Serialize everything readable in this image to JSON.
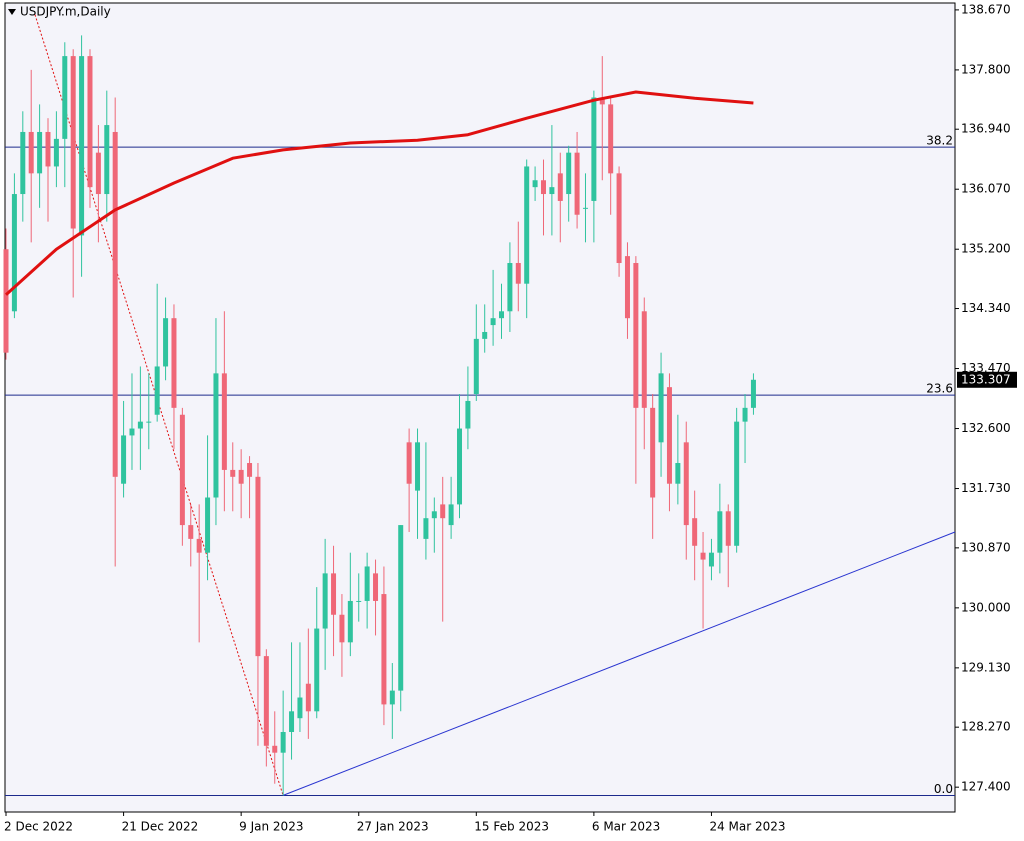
{
  "chart_data": {
    "type": "candlestick",
    "title": "USDJPY.m,Daily",
    "categories": [
      "2 Dec 2022",
      null,
      null,
      null,
      null,
      null,
      null,
      null,
      null,
      null,
      null,
      null,
      null,
      null,
      "21 Dec 2022",
      null,
      null,
      null,
      null,
      null,
      null,
      null,
      null,
      null,
      null,
      null,
      null,
      null,
      "9 Jan 2023",
      null,
      null,
      null,
      null,
      null,
      null,
      null,
      null,
      null,
      null,
      null,
      null,
      null,
      "27 Jan 2023",
      null,
      null,
      null,
      null,
      null,
      null,
      null,
      null,
      null,
      null,
      null,
      null,
      null,
      "15 Feb 2023",
      null,
      null,
      null,
      null,
      null,
      null,
      null,
      null,
      null,
      null,
      null,
      null,
      null,
      "6 Mar 2023",
      null,
      null,
      null,
      null,
      null,
      null,
      null,
      null,
      null,
      null,
      null,
      null,
      null,
      "24 Mar 2023",
      null,
      null,
      null,
      null,
      null
    ],
    "open": [
      135.2,
      134.3,
      136.0,
      136.9,
      136.3,
      136.9,
      136.4,
      136.8,
      138.0,
      135.4,
      138.0,
      136.6,
      136.0,
      136.9,
      131.8,
      132.5,
      132.6,
      132.7,
      132.8,
      133.5,
      134.2,
      132.8,
      131.2,
      131.0,
      130.8,
      131.6,
      133.4,
      132.0,
      132.0,
      132.1,
      131.9,
      129.3,
      128.0,
      127.9,
      128.2,
      128.4,
      128.9,
      128.5,
      129.7,
      130.5,
      129.9,
      129.5,
      130.1,
      130.1,
      130.5,
      130.2,
      128.6,
      128.8,
      132.4,
      131.7,
      131.0,
      131.3,
      131.5,
      131.2,
      131.5,
      132.6,
      133.1,
      133.9,
      134.1,
      134.2,
      134.3,
      135.0,
      134.7,
      136.1,
      136.2,
      136.0,
      136.3,
      136.0,
      136.6,
      135.8,
      135.9,
      137.4,
      137.3,
      136.3,
      135.1,
      135.0,
      134.3,
      132.9,
      132.4,
      133.2,
      131.8,
      132.4,
      131.3,
      130.8,
      130.6,
      130.8,
      131.4,
      130.9,
      132.7,
      132.9
    ],
    "high": [
      135.5,
      136.3,
      137.2,
      137.8,
      137.3,
      137.1,
      137.2,
      138.2,
      138.1,
      138.3,
      138.1,
      137.0,
      137.5,
      137.4,
      133.0,
      133.4,
      133.5,
      133.4,
      134.7,
      134.5,
      134.4,
      132.9,
      131.5,
      131.5,
      132.5,
      134.2,
      134.3,
      132.4,
      132.3,
      132.2,
      132.1,
      129.4,
      128.5,
      128.8,
      129.5,
      129.5,
      129.7,
      130.3,
      131.0,
      130.9,
      130.2,
      130.8,
      130.5,
      130.8,
      130.7,
      130.6,
      129.2,
      131.2,
      132.6,
      132.6,
      132.4,
      131.6,
      131.9,
      131.9,
      133.1,
      133.5,
      134.4,
      134.4,
      134.9,
      134.7,
      135.3,
      135.6,
      136.5,
      136.4,
      136.5,
      137.0,
      136.6,
      136.7,
      136.9,
      136.3,
      137.5,
      138.0,
      137.4,
      136.4,
      135.3,
      135.1,
      134.5,
      133.1,
      133.7,
      133.4,
      132.8,
      132.7,
      131.7,
      131.1,
      131.0,
      131.8,
      131.5,
      132.9,
      133.1,
      133.4
    ],
    "low": [
      133.6,
      134.2,
      135.6,
      135.3,
      135.8,
      135.6,
      136.1,
      136.1,
      134.5,
      134.8,
      135.8,
      135.3,
      135.6,
      130.6,
      131.6,
      132.0,
      132.0,
      132.3,
      132.7,
      133.3,
      132.3,
      130.9,
      130.6,
      129.5,
      130.4,
      131.2,
      131.4,
      131.4,
      131.3,
      131.3,
      128.0,
      127.7,
      127.45,
      127.28,
      127.8,
      128.2,
      128.1,
      128.4,
      129.1,
      129.3,
      129.0,
      129.3,
      129.8,
      129.7,
      129.6,
      128.3,
      128.1,
      128.5,
      131.1,
      131.0,
      130.7,
      130.8,
      129.8,
      131.0,
      131.3,
      132.3,
      133.0,
      133.7,
      133.8,
      133.9,
      134.0,
      134.3,
      134.2,
      135.9,
      135.4,
      135.4,
      135.3,
      135.6,
      135.5,
      135.3,
      135.3,
      136.2,
      135.7,
      134.8,
      133.9,
      131.8,
      132.3,
      131.0,
      131.9,
      131.4,
      131.5,
      130.7,
      130.4,
      129.7,
      130.4,
      130.5,
      130.3,
      130.8,
      132.1,
      132.8
    ],
    "close": [
      133.7,
      136.0,
      136.9,
      136.3,
      136.9,
      136.4,
      136.8,
      138.0,
      135.5,
      138.0,
      136.1,
      136.0,
      137.0,
      131.9,
      132.5,
      132.6,
      132.7,
      132.7,
      133.5,
      134.2,
      132.9,
      131.2,
      131.0,
      130.8,
      131.6,
      133.4,
      132.0,
      131.9,
      131.8,
      131.9,
      129.3,
      128.0,
      127.9,
      128.2,
      128.5,
      128.7,
      128.5,
      129.7,
      130.5,
      129.9,
      129.5,
      130.1,
      130.1,
      130.6,
      130.1,
      128.6,
      128.8,
      131.2,
      131.8,
      132.4,
      131.3,
      131.4,
      131.3,
      131.5,
      132.6,
      133.0,
      133.9,
      134.0,
      134.2,
      134.3,
      135.0,
      134.7,
      136.4,
      136.2,
      136.0,
      136.1,
      135.9,
      136.6,
      135.7,
      135.8,
      137.4,
      137.3,
      136.3,
      135.0,
      134.2,
      132.9,
      132.9,
      131.6,
      133.4,
      131.8,
      132.1,
      131.2,
      130.9,
      130.7,
      130.8,
      131.4,
      130.9,
      132.7,
      132.9,
      133.307
    ],
    "up_color": "#2fc39e",
    "down_color": "#ef6777",
    "xlim": [
      -0.12,
      113
    ],
    "ylim": [
      127.04,
      138.77
    ],
    "yticks": [
      {
        "value": 138.67,
        "label": "138.670"
      },
      {
        "value": 137.8,
        "label": "137.800"
      },
      {
        "value": 136.94,
        "label": "136.940"
      },
      {
        "value": 136.07,
        "label": "136.070"
      },
      {
        "value": 135.2,
        "label": "135.200"
      },
      {
        "value": 134.34,
        "label": "134.340"
      },
      {
        "value": 133.47,
        "label": "133.470"
      },
      {
        "value": 132.6,
        "label": "132.600"
      },
      {
        "value": 131.73,
        "label": "131.730"
      },
      {
        "value": 130.87,
        "label": "130.870"
      },
      {
        "value": 130,
        "label": "130.000"
      },
      {
        "value": 129.13,
        "label": "129.130"
      },
      {
        "value": 128.27,
        "label": "128.270"
      },
      {
        "value": 127.4,
        "label": "127.400"
      }
    ],
    "current_price": {
      "value": 133.307,
      "label": "133.307"
    },
    "moving_average": {
      "color": "#e01010",
      "x": [
        0,
        6,
        13,
        20,
        27,
        33,
        41,
        49,
        55,
        62,
        70,
        75,
        82,
        89
      ],
      "values": [
        134.54,
        135.2,
        135.77,
        136.16,
        136.52,
        136.64,
        136.74,
        136.78,
        136.86,
        137.1,
        137.36,
        137.48,
        137.39,
        137.32
      ]
    },
    "levels": [
      {
        "label": "38.2",
        "value": 136.68
      },
      {
        "label": "23.6",
        "value": 133.085
      },
      {
        "label": "0.0",
        "value": 127.28
      }
    ],
    "level_color": "#1c2a8c",
    "trendline": {
      "color": "#2a35d0",
      "x": [
        33,
        113
      ],
      "values": [
        127.28,
        131.1
      ]
    },
    "dotted_line": {
      "color": "#e01010",
      "x": [
        3.45,
        33
      ],
      "values": [
        138.6,
        127.28
      ]
    }
  }
}
